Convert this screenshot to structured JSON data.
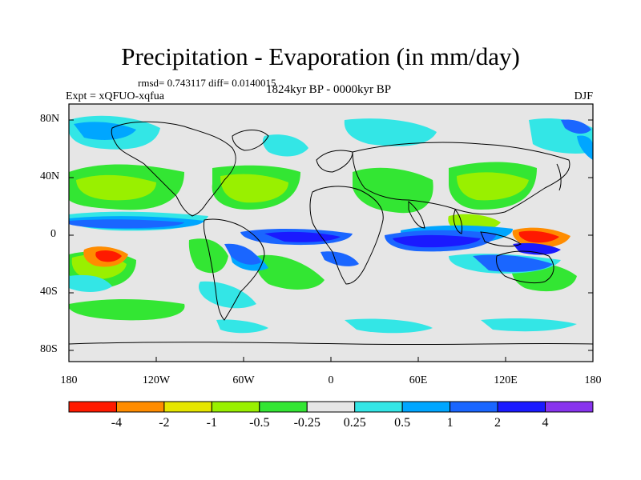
{
  "title": "Precipitation - Evaporation (in mm/day)",
  "stats": "rmsd= 0.743117 diff= 0.0140015",
  "period": "1824kyr BP - 0000kyr BP",
  "experiment": "Expt = xQFUO-xqfua",
  "season": "DJF",
  "lat_ticks": [
    "80N",
    "40N",
    "0",
    "40S",
    "80S"
  ],
  "lon_ticks": [
    "180",
    "120W",
    "60W",
    "0",
    "60E",
    "120E",
    "180"
  ],
  "colorbar": {
    "labels": [
      "-4",
      "-2",
      "-1",
      "-0.5",
      "-0.25",
      "0.25",
      "0.5",
      "1",
      "2",
      "4"
    ],
    "colors": [
      "#ff1a00",
      "#ff8c00",
      "#e6e600",
      "#99f000",
      "#33e633",
      "#e6e6e6",
      "#33e6e6",
      "#00a6ff",
      "#1a66ff",
      "#1a1aff",
      "#8833ee"
    ]
  }
}
